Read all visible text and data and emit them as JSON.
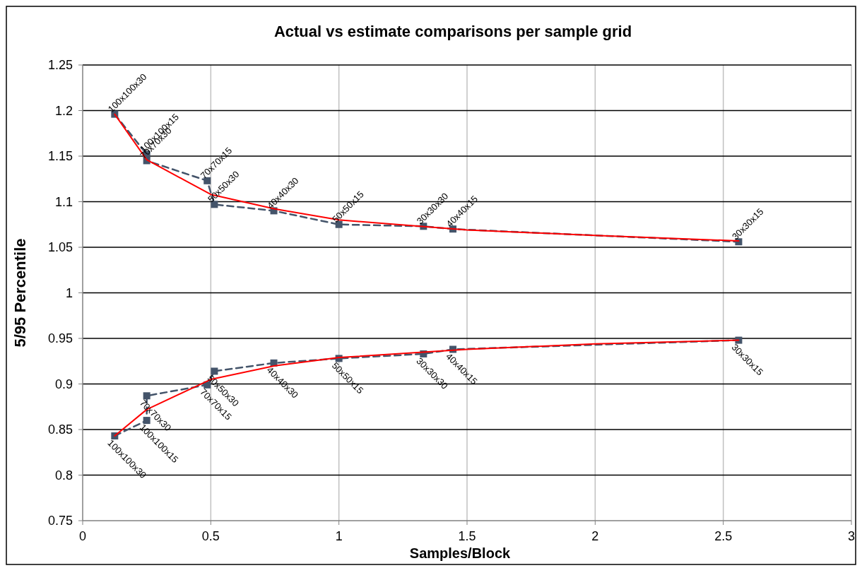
{
  "chart_data": {
    "type": "line",
    "title": "Actual vs estimate comparisons per sample grid",
    "xlabel": "Samples/Block",
    "ylabel": "5/95 Percentile",
    "xlim": [
      0,
      3
    ],
    "xticks": [
      0,
      0.5,
      1,
      1.5,
      2,
      2.5,
      3
    ],
    "ylim": [
      0.75,
      1.25
    ],
    "yticks": [
      0.75,
      0.8,
      0.85,
      0.9,
      0.95,
      1,
      1.05,
      1.1,
      1.15,
      1.2,
      1.25
    ],
    "grid": true,
    "series": [
      {
        "color": "#44546a",
        "line_style": "dashed",
        "marker": "square",
        "x": [
          0.125,
          0.25,
          0.25,
          0.486,
          0.514,
          0.746,
          1.0,
          1.33,
          1.445,
          2.56
        ],
        "values": [
          1.196,
          1.152,
          1.145,
          1.123,
          1.097,
          1.09,
          1.075,
          1.073,
          1.07,
          1.056
        ]
      },
      {
        "color": "#44546a",
        "line_style": "dashed",
        "marker": "square",
        "x": [
          0.125,
          0.25,
          0.25,
          0.486,
          0.514,
          0.746,
          1.0,
          1.33,
          1.445,
          2.56
        ],
        "values": [
          0.843,
          0.86,
          0.887,
          0.899,
          0.914,
          0.923,
          0.928,
          0.933,
          0.938,
          0.948
        ]
      },
      {
        "color": "#ff0000",
        "line_style": "solid",
        "marker": "none",
        "x": [
          0.125,
          0.25,
          0.5,
          0.75,
          1,
          1.5,
          2,
          2.56
        ],
        "values": [
          1.196,
          1.146,
          1.108,
          1.092,
          1.08,
          1.069,
          1.063,
          1.057
        ]
      },
      {
        "color": "#ff0000",
        "line_style": "solid",
        "marker": "none",
        "x": [
          0.125,
          0.25,
          0.5,
          0.75,
          1,
          1.5,
          2,
          2.56
        ],
        "values": [
          0.843,
          0.872,
          0.905,
          0.92,
          0.929,
          0.938,
          0.944,
          0.948
        ]
      }
    ],
    "annotations": [
      {
        "text": "100x100x30",
        "x": 0.125,
        "y": 1.196
      },
      {
        "text": "100x100x15",
        "x": 0.25,
        "y": 1.152
      },
      {
        "text": "70x70x30",
        "x": 0.25,
        "y": 1.145
      },
      {
        "text": "70x70x15",
        "x": 0.486,
        "y": 1.123
      },
      {
        "text": "50x50x30",
        "x": 0.514,
        "y": 1.097
      },
      {
        "text": "40x40x30",
        "x": 0.746,
        "y": 1.09
      },
      {
        "text": "50x50x15",
        "x": 1.0,
        "y": 1.075
      },
      {
        "text": "30x30x30",
        "x": 1.33,
        "y": 1.073
      },
      {
        "text": "40x40x15",
        "x": 1.445,
        "y": 1.07
      },
      {
        "text": "30x30x15",
        "x": 2.56,
        "y": 1.056
      },
      {
        "text": "100x100x30",
        "x": 0.125,
        "y": 0.843
      },
      {
        "text": "100x100x15",
        "x": 0.25,
        "y": 0.86
      },
      {
        "text": "70x70x30",
        "x": 0.25,
        "y": 0.887
      },
      {
        "text": "70x70x15",
        "x": 0.486,
        "y": 0.899
      },
      {
        "text": "50x50x30",
        "x": 0.514,
        "y": 0.914
      },
      {
        "text": "40x40x30",
        "x": 0.746,
        "y": 0.923
      },
      {
        "text": "50x50x15",
        "x": 1.0,
        "y": 0.928
      },
      {
        "text": "30x30x30",
        "x": 1.33,
        "y": 0.933
      },
      {
        "text": "40x40x15",
        "x": 1.445,
        "y": 0.938
      },
      {
        "text": "30x30x15",
        "x": 2.56,
        "y": 0.948
      }
    ]
  }
}
